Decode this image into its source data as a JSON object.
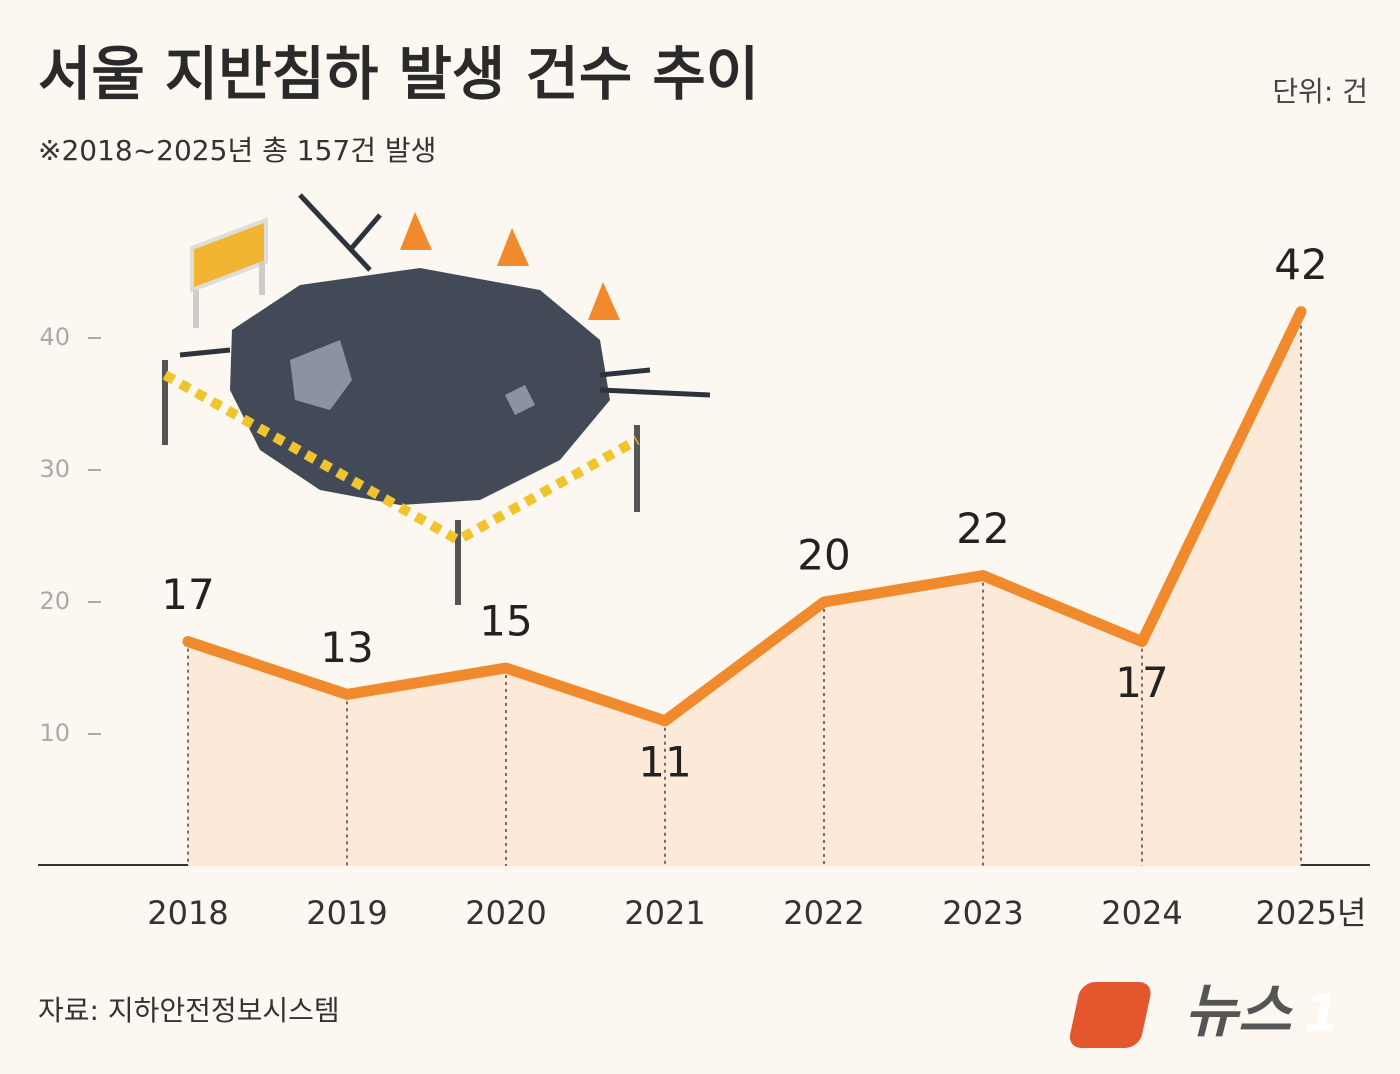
{
  "chart_data": {
    "type": "line",
    "title": "서울 지반침하 발생 건수 추이",
    "subtitle": "※2018~2025년 총 157건 발생",
    "unit": "단위: 건",
    "source": "자료: 지하안전정보시스템",
    "logo": {
      "text": "뉴스",
      "mark": "1"
    },
    "categories": [
      "2018",
      "2019",
      "2020",
      "2021",
      "2022",
      "2023",
      "2024",
      "2025년"
    ],
    "series": [
      {
        "name": "지반침하 발생 건수",
        "color": "#f08a2c",
        "values": [
          17,
          13,
          15,
          11,
          20,
          22,
          17,
          42
        ]
      }
    ],
    "ylim": [
      0,
      45
    ],
    "yticks": [
      10,
      20,
      30,
      40
    ],
    "grid": false
  }
}
